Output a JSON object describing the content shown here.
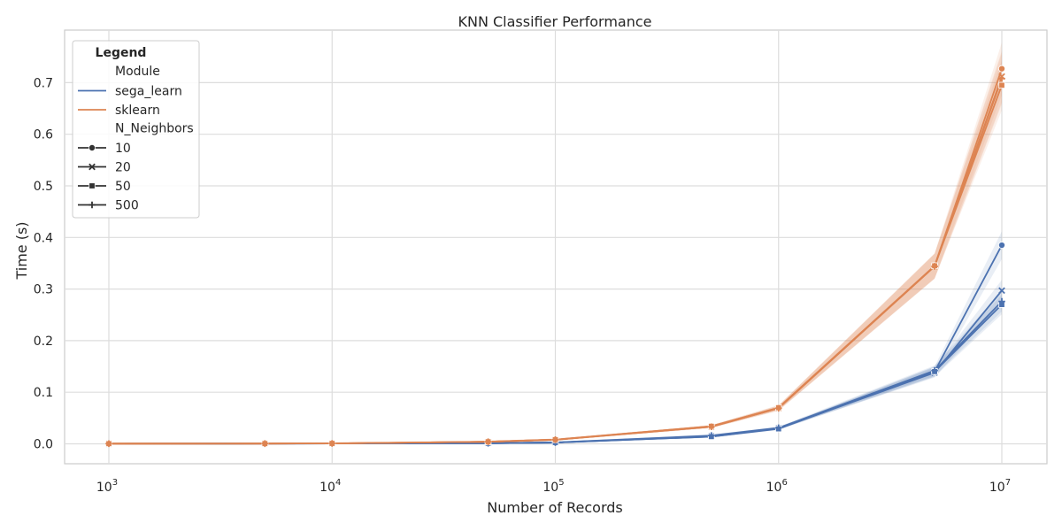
{
  "chart_data": {
    "type": "line",
    "title": "KNN Classifier Performance",
    "xlabel": "Number of Records",
    "ylabel": "Time (s)",
    "xscale": "log",
    "x_ticks": [
      {
        "value": 1000,
        "base": "10",
        "exp": "3"
      },
      {
        "value": 10000,
        "base": "10",
        "exp": "4"
      },
      {
        "value": 100000,
        "base": "10",
        "exp": "5"
      },
      {
        "value": 1000000,
        "base": "10",
        "exp": "6"
      },
      {
        "value": 10000000,
        "base": "10",
        "exp": "7"
      }
    ],
    "y_ticks": [
      "0.0",
      "0.1",
      "0.2",
      "0.3",
      "0.4",
      "0.5",
      "0.6",
      "0.7"
    ],
    "x": [
      1000,
      5000,
      10000,
      50000,
      100000,
      500000,
      1000000,
      5000000,
      10000000
    ],
    "grid": true,
    "legend": {
      "title": "Legend",
      "placement": "top-left",
      "hue_title": "Module",
      "style_title": "N_Neighbors",
      "modules": [
        {
          "name": "sega_learn",
          "color": "#4c72b0"
        },
        {
          "name": "sklearn",
          "color": "#dd8452"
        }
      ],
      "styles": [
        {
          "name": "10",
          "marker": "circle"
        },
        {
          "name": "20",
          "marker": "x"
        },
        {
          "name": "50",
          "marker": "square"
        },
        {
          "name": "500",
          "marker": "plus"
        }
      ]
    },
    "series": [
      {
        "module": "sega_learn",
        "n_neighbors": "10",
        "color": "#4c72b0",
        "marker": "circle",
        "values": [
          0.0002,
          0.0004,
          0.0006,
          0.0012,
          0.0025,
          0.014,
          0.03,
          0.14,
          0.385
        ]
      },
      {
        "module": "sega_learn",
        "n_neighbors": "20",
        "color": "#4c72b0",
        "marker": "x",
        "values": [
          0.0002,
          0.0004,
          0.0006,
          0.0012,
          0.0025,
          0.015,
          0.03,
          0.138,
          0.297
        ]
      },
      {
        "module": "sega_learn",
        "n_neighbors": "50",
        "color": "#4c72b0",
        "marker": "square",
        "values": [
          0.0002,
          0.0004,
          0.0006,
          0.0012,
          0.0025,
          0.014,
          0.029,
          0.14,
          0.27
        ]
      },
      {
        "module": "sega_learn",
        "n_neighbors": "500",
        "color": "#4c72b0",
        "marker": "plus",
        "values": [
          0.0002,
          0.0004,
          0.0006,
          0.0012,
          0.0025,
          0.016,
          0.031,
          0.142,
          0.276
        ]
      },
      {
        "module": "sklearn",
        "n_neighbors": "10",
        "color": "#dd8452",
        "marker": "circle",
        "values": [
          0.0003,
          0.0005,
          0.0008,
          0.004,
          0.008,
          0.034,
          0.07,
          0.345,
          0.727
        ]
      },
      {
        "module": "sklearn",
        "n_neighbors": "20",
        "color": "#dd8452",
        "marker": "x",
        "values": [
          0.0003,
          0.0005,
          0.0008,
          0.004,
          0.008,
          0.033,
          0.069,
          0.344,
          0.712
        ]
      },
      {
        "module": "sklearn",
        "n_neighbors": "50",
        "color": "#dd8452",
        "marker": "square",
        "values": [
          0.0003,
          0.0005,
          0.0008,
          0.004,
          0.008,
          0.034,
          0.07,
          0.345,
          0.695
        ]
      },
      {
        "module": "sklearn",
        "n_neighbors": "500",
        "color": "#dd8452",
        "marker": "plus",
        "values": [
          0.0003,
          0.0005,
          0.0008,
          0.004,
          0.008,
          0.033,
          0.069,
          0.344,
          0.708
        ]
      }
    ]
  }
}
